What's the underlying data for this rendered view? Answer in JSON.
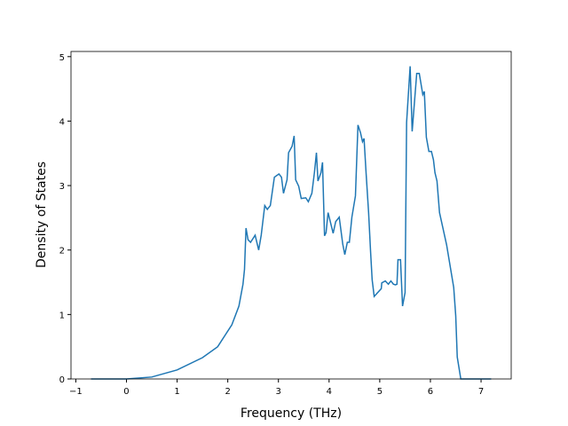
{
  "chart_data": {
    "type": "line",
    "x_label": "Frequency (THz)",
    "y_label": "Density of States",
    "x": [
      -0.7,
      0,
      0.5,
      1.0,
      1.5,
      1.8,
      2.08,
      2.22,
      2.3,
      2.33,
      2.36,
      2.4,
      2.45,
      2.54,
      2.61,
      2.66,
      2.73,
      2.78,
      2.84,
      2.92,
      3.01,
      3.06,
      3.1,
      3.17,
      3.2,
      3.27,
      3.31,
      3.34,
      3.4,
      3.45,
      3.54,
      3.59,
      3.66,
      3.71,
      3.75,
      3.78,
      3.84,
      3.87,
      3.91,
      3.94,
      3.98,
      4.08,
      4.13,
      4.2,
      4.27,
      4.31,
      4.36,
      4.4,
      4.45,
      4.52,
      4.57,
      4.62,
      4.66,
      4.69,
      4.73,
      4.78,
      4.82,
      4.85,
      4.89,
      4.96,
      5.03,
      5.04,
      5.11,
      5.17,
      5.22,
      5.27,
      5.31,
      5.34,
      5.36,
      5.41,
      5.45,
      5.5,
      5.53,
      5.6,
      5.64,
      5.69,
      5.73,
      5.78,
      5.85,
      5.88,
      5.92,
      5.97,
      6.02,
      6.06,
      6.09,
      6.13,
      6.18,
      6.32,
      6.46,
      6.5,
      6.53,
      6.6,
      6.99,
      7.2
    ],
    "series": [
      {
        "name": "DOS",
        "color": "#1f77b4",
        "values": [
          0,
          0,
          0.03,
          0.14,
          0.33,
          0.5,
          0.84,
          1.13,
          1.47,
          1.7,
          2.34,
          2.16,
          2.12,
          2.23,
          2.0,
          2.23,
          2.69,
          2.63,
          2.69,
          3.13,
          3.18,
          3.13,
          2.88,
          3.09,
          3.51,
          3.61,
          3.77,
          3.09,
          2.99,
          2.8,
          2.81,
          2.75,
          2.88,
          3.2,
          3.51,
          3.07,
          3.2,
          3.36,
          2.22,
          2.27,
          2.58,
          2.26,
          2.44,
          2.51,
          2.09,
          1.93,
          2.12,
          2.12,
          2.51,
          2.84,
          3.94,
          3.82,
          3.68,
          3.73,
          3.2,
          2.58,
          1.96,
          1.54,
          1.28,
          1.34,
          1.4,
          1.49,
          1.52,
          1.47,
          1.52,
          1.47,
          1.46,
          1.47,
          1.85,
          1.85,
          1.13,
          1.34,
          3.98,
          4.85,
          3.84,
          4.34,
          4.74,
          4.74,
          4.41,
          4.46,
          3.75,
          3.53,
          3.53,
          3.4,
          3.2,
          3.07,
          2.58,
          2.08,
          1.42,
          0.98,
          0.34,
          0,
          0,
          0
        ]
      }
    ],
    "xlim": [
      -1.095,
      7.595
    ],
    "ylim": [
      0,
      5.08
    ],
    "xticks": [
      {
        "value": -1,
        "label": "−1"
      },
      0,
      1,
      2,
      3,
      4,
      5,
      6,
      7
    ],
    "yticks": [
      0,
      1,
      2,
      3,
      4,
      5
    ]
  }
}
